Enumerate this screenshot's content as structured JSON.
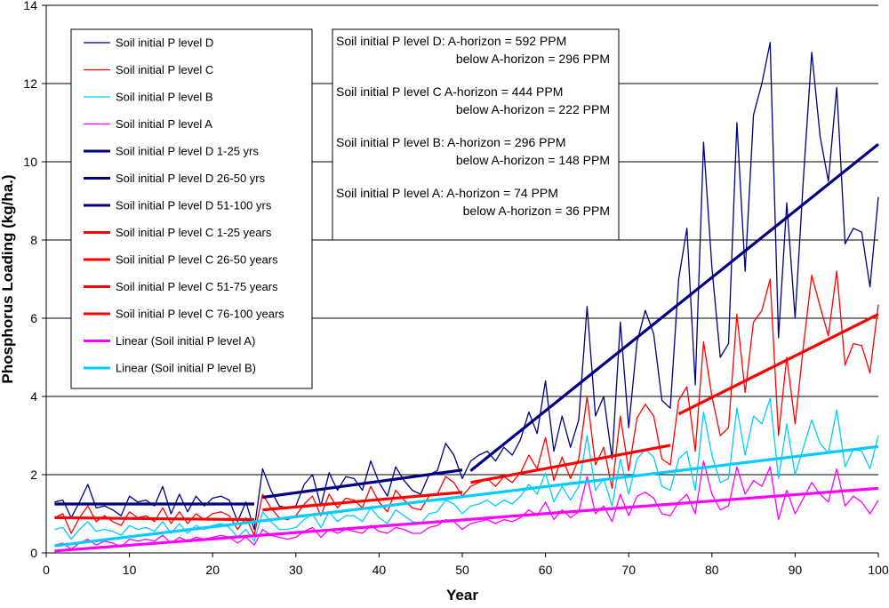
{
  "chart_data": {
    "type": "line",
    "title": "",
    "xlabel": "Year",
    "ylabel": "Phosphorus Loading (kg/ha.)",
    "xlim": [
      0,
      100
    ],
    "ylim": [
      0,
      14
    ],
    "x_ticks": [
      "0",
      "10",
      "20",
      "30",
      "40",
      "50",
      "60",
      "70",
      "80",
      "90",
      "100"
    ],
    "y_ticks": [
      "0",
      "2",
      "4",
      "6",
      "8",
      "10",
      "12",
      "14"
    ],
    "legend": [
      {
        "label": "Soil initial P level D",
        "color": "#000080",
        "style": "thin"
      },
      {
        "label": "Soil initial P level C",
        "color": "#ff0000",
        "style": "thin"
      },
      {
        "label": "Soil initial P level B",
        "color": "#00ccff",
        "style": "thin"
      },
      {
        "label": "Soil initial P level A",
        "color": "#ff00ff",
        "style": "thin"
      },
      {
        "label": "Soil initial P level D 1-25 yrs",
        "color": "#000080",
        "style": "thick"
      },
      {
        "label": "Soil initial P level D 26-50 yrs",
        "color": "#000080",
        "style": "thick"
      },
      {
        "label": "Soil initial P level D 51-100 yrs",
        "color": "#000080",
        "style": "thick"
      },
      {
        "label": "Soil initial P level C 1-25 years",
        "color": "#ff0000",
        "style": "thick"
      },
      {
        "label": "Soil initial P level C 26-50 years",
        "color": "#ff0000",
        "style": "thick"
      },
      {
        "label": "Soil initial P level C 51-75 years",
        "color": "#ff0000",
        "style": "thick"
      },
      {
        "label": "Soil initial P level C 76-100 years",
        "color": "#ff0000",
        "style": "thick"
      },
      {
        "label": "Linear (Soil initial P level A)",
        "color": "#ff00ff",
        "style": "thick"
      },
      {
        "label": "Linear (Soil initial P level B)",
        "color": "#00ccff",
        "style": "thick"
      }
    ],
    "annotation": [
      {
        "left": "Soil initial P level D: A-horizon = 592 PPM",
        "right": "below A-horizon = 296 PPM"
      },
      {
        "left": "Soil initial P level C A-horizon = 444 PPM",
        "right": "below A-horizon = 222 PPM"
      },
      {
        "left": "Soil initial P level B: A-horizon = 296 PPM",
        "right": "below A-horizon = 148 PPM"
      },
      {
        "left": "Soil initial P level A: A-horizon = 74 PPM",
        "right": "below A-horizon = 36 PPM"
      }
    ],
    "x": [
      1,
      2,
      3,
      4,
      5,
      6,
      7,
      8,
      9,
      10,
      11,
      12,
      13,
      14,
      15,
      16,
      17,
      18,
      19,
      20,
      21,
      22,
      23,
      24,
      25,
      26,
      27,
      28,
      29,
      30,
      31,
      32,
      33,
      34,
      35,
      36,
      37,
      38,
      39,
      40,
      41,
      42,
      43,
      44,
      45,
      46,
      47,
      48,
      49,
      50,
      51,
      52,
      53,
      54,
      55,
      56,
      57,
      58,
      59,
      60,
      61,
      62,
      63,
      64,
      65,
      66,
      67,
      68,
      69,
      70,
      71,
      72,
      73,
      74,
      75,
      76,
      77,
      78,
      79,
      80,
      81,
      82,
      83,
      84,
      85,
      86,
      87,
      88,
      89,
      90,
      91,
      92,
      93,
      94,
      95,
      96,
      97,
      98,
      99,
      100
    ],
    "series": [
      {
        "name": "Soil initial P level D",
        "color": "#000080",
        "values": [
          1.3,
          1.35,
          0.9,
          1.3,
          1.75,
          1.15,
          1.2,
          1.1,
          0.95,
          1.45,
          1.3,
          1.35,
          1.2,
          1.7,
          1.0,
          1.5,
          1.05,
          1.45,
          1.2,
          1.4,
          1.45,
          1.35,
          0.8,
          1.3,
          0.6,
          2.15,
          1.6,
          1.2,
          1.15,
          1.2,
          1.75,
          2.0,
          1.2,
          2.05,
          1.6,
          1.95,
          1.9,
          1.6,
          2.35,
          1.8,
          1.45,
          2.2,
          1.85,
          1.6,
          1.5,
          2.0,
          2.1,
          2.8,
          2.5,
          1.9,
          2.35,
          2.5,
          2.6,
          2.35,
          2.7,
          2.5,
          2.9,
          3.6,
          3.05,
          4.4,
          2.6,
          3.5,
          2.7,
          3.4,
          6.3,
          3.5,
          4.0,
          2.4,
          5.9,
          3.2,
          5.4,
          6.2,
          5.6,
          3.9,
          3.7,
          7.0,
          8.3,
          4.3,
          10.5,
          7.3,
          5.0,
          5.35,
          11.0,
          7.2,
          11.2,
          12.0,
          13.05,
          5.5,
          8.95,
          6.0,
          9.6,
          12.8,
          10.65,
          9.5,
          11.9,
          7.9,
          8.3,
          8.2,
          6.8,
          9.1
        ]
      },
      {
        "name": "Soil initial P level C",
        "color": "#ff0000",
        "values": [
          0.9,
          1.0,
          0.5,
          0.9,
          1.2,
          0.8,
          0.95,
          0.8,
          0.7,
          1.05,
          0.9,
          0.95,
          0.8,
          1.15,
          0.75,
          1.05,
          0.75,
          1.0,
          0.85,
          1.0,
          1.05,
          0.95,
          0.6,
          0.9,
          0.45,
          1.5,
          1.15,
          0.9,
          0.85,
          0.95,
          1.25,
          1.45,
          0.95,
          1.5,
          1.15,
          1.4,
          1.35,
          1.15,
          1.7,
          1.3,
          1.05,
          1.6,
          1.35,
          1.15,
          1.1,
          1.45,
          1.5,
          1.95,
          1.8,
          1.45,
          1.7,
          1.8,
          1.9,
          1.7,
          1.95,
          1.8,
          2.05,
          2.5,
          2.15,
          2.95,
          1.85,
          2.45,
          1.9,
          2.4,
          4.0,
          2.25,
          2.7,
          1.65,
          3.5,
          2.1,
          3.45,
          3.8,
          3.5,
          2.4,
          2.25,
          3.9,
          4.25,
          2.6,
          5.4,
          4.0,
          3.0,
          3.2,
          6.1,
          4.1,
          5.9,
          6.2,
          7.0,
          3.0,
          5.0,
          3.3,
          5.3,
          7.1,
          6.3,
          5.55,
          7.2,
          4.8,
          5.35,
          5.3,
          4.6,
          6.35
        ]
      },
      {
        "name": "Soil initial P level B",
        "color": "#00ccff",
        "values": [
          0.6,
          0.65,
          0.35,
          0.6,
          0.8,
          0.55,
          0.6,
          0.55,
          0.45,
          0.7,
          0.6,
          0.65,
          0.55,
          0.8,
          0.5,
          0.75,
          0.5,
          0.7,
          0.6,
          0.7,
          0.75,
          0.65,
          0.4,
          0.6,
          0.3,
          1.05,
          0.8,
          0.6,
          0.6,
          0.65,
          0.85,
          1.0,
          0.65,
          1.05,
          0.8,
          0.95,
          0.95,
          0.8,
          1.15,
          0.9,
          0.75,
          1.1,
          0.95,
          0.8,
          0.75,
          1.0,
          1.05,
          1.35,
          1.25,
          1.0,
          1.2,
          1.25,
          1.35,
          1.2,
          1.35,
          1.25,
          1.45,
          1.75,
          1.5,
          2.05,
          1.3,
          1.7,
          1.35,
          1.7,
          3.0,
          1.6,
          1.9,
          1.2,
          2.4,
          1.5,
          2.4,
          2.65,
          2.45,
          1.7,
          1.6,
          2.4,
          2.6,
          1.6,
          3.6,
          2.5,
          1.8,
          1.9,
          3.7,
          2.5,
          3.5,
          3.3,
          3.95,
          1.9,
          3.3,
          2.0,
          2.7,
          3.4,
          2.8,
          2.55,
          3.65,
          2.2,
          2.65,
          2.6,
          2.15,
          3.0
        ]
      },
      {
        "name": "Soil initial P level A",
        "color": "#ff00ff",
        "values": [
          0.2,
          0.25,
          0.1,
          0.25,
          0.35,
          0.2,
          0.3,
          0.25,
          0.15,
          0.35,
          0.3,
          0.35,
          0.3,
          0.45,
          0.25,
          0.4,
          0.3,
          0.4,
          0.35,
          0.4,
          0.45,
          0.4,
          0.25,
          0.4,
          0.2,
          0.6,
          0.45,
          0.4,
          0.35,
          0.4,
          0.55,
          0.65,
          0.4,
          0.6,
          0.5,
          0.6,
          0.55,
          0.5,
          0.7,
          0.55,
          0.5,
          0.65,
          0.6,
          0.5,
          0.5,
          0.65,
          0.7,
          0.85,
          0.8,
          0.6,
          0.75,
          0.8,
          0.85,
          0.75,
          0.85,
          0.8,
          0.9,
          1.1,
          0.95,
          1.3,
          0.85,
          1.1,
          0.9,
          1.05,
          1.95,
          1.0,
          1.2,
          0.8,
          1.5,
          0.95,
          1.45,
          1.55,
          1.4,
          1.0,
          0.95,
          1.3,
          1.5,
          1.0,
          2.35,
          1.5,
          1.1,
          1.2,
          2.2,
          1.5,
          1.85,
          1.7,
          2.2,
          0.85,
          1.6,
          1.0,
          1.4,
          1.8,
          1.5,
          1.3,
          2.15,
          1.2,
          1.45,
          1.3,
          1.0,
          1.35
        ]
      }
    ],
    "trend_lines": [
      {
        "name": "Soil initial P level D 1-25 yrs",
        "color": "#000080",
        "x": [
          1,
          25
        ],
        "y": [
          1.25,
          1.25
        ]
      },
      {
        "name": "Soil initial P level D 26-50 yrs",
        "color": "#000080",
        "x": [
          26,
          50
        ],
        "y": [
          1.42,
          2.12
        ]
      },
      {
        "name": "Soil initial P level D 51-100 yrs",
        "color": "#000080",
        "x": [
          51,
          100
        ],
        "y": [
          2.1,
          10.45
        ]
      },
      {
        "name": "Soil initial P level C 1-25 years",
        "color": "#ff0000",
        "x": [
          1,
          25
        ],
        "y": [
          0.9,
          0.85
        ]
      },
      {
        "name": "Soil initial P level C 26-50 years",
        "color": "#ff0000",
        "x": [
          26,
          50
        ],
        "y": [
          1.1,
          1.55
        ]
      },
      {
        "name": "Soil initial P level C 51-75 years",
        "color": "#ff0000",
        "x": [
          51,
          75
        ],
        "y": [
          1.8,
          2.75
        ]
      },
      {
        "name": "Soil initial P level C 76-100 years",
        "color": "#ff0000",
        "x": [
          76,
          100
        ],
        "y": [
          3.55,
          6.1
        ]
      },
      {
        "name": "Linear (Soil initial P level A)",
        "color": "#ff00ff",
        "x": [
          1,
          100
        ],
        "y": [
          0.05,
          1.65
        ]
      },
      {
        "name": "Linear (Soil initial P level B)",
        "color": "#00ccff",
        "x": [
          1,
          100
        ],
        "y": [
          0.18,
          2.72
        ]
      }
    ]
  }
}
